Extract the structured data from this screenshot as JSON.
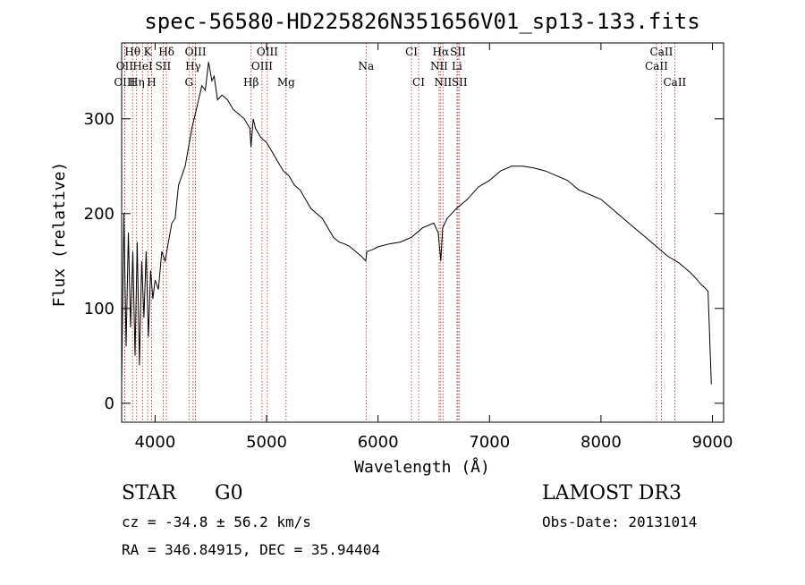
{
  "chart_data": {
    "type": "line",
    "title": "spec-56580-HD225826N351656V01_sp13-133.fits",
    "xlabel": "Wavelength (Å)",
    "ylabel": "Flux (relative)",
    "xlim": [
      3700,
      9100
    ],
    "ylim": [
      -20,
      380
    ],
    "x_ticks": [
      4000,
      5000,
      6000,
      7000,
      8000,
      9000
    ],
    "y_ticks": [
      0,
      100,
      200,
      300
    ],
    "x_tick_labels": [
      "4000",
      "5000",
      "6000",
      "7000",
      "8000",
      "9000"
    ],
    "y_tick_labels": [
      "0",
      "100",
      "200",
      "300"
    ],
    "grid": false,
    "legend": "none",
    "series": [
      {
        "color": "#000000",
        "x": [
          3700,
          3720,
          3740,
          3760,
          3780,
          3800,
          3820,
          3840,
          3860,
          3880,
          3900,
          3920,
          3940,
          3960,
          3980,
          4000,
          4030,
          4060,
          4090,
          4120,
          4150,
          4180,
          4210,
          4240,
          4270,
          4300,
          4330,
          4360,
          4390,
          4420,
          4450,
          4480,
          4510,
          4530,
          4560,
          4600,
          4650,
          4700,
          4750,
          4800,
          4850,
          4860,
          4880,
          4900,
          4950,
          5000,
          5050,
          5100,
          5150,
          5200,
          5250,
          5300,
          5350,
          5400,
          5450,
          5500,
          5550,
          5600,
          5650,
          5700,
          5750,
          5800,
          5850,
          5890,
          5900,
          5950,
          6000,
          6100,
          6200,
          6300,
          6400,
          6500,
          6540,
          6563,
          6580,
          6620,
          6700,
          6800,
          6900,
          7000,
          7100,
          7200,
          7300,
          7400,
          7500,
          7600,
          7700,
          7800,
          7900,
          8000,
          8100,
          8200,
          8300,
          8400,
          8500,
          8600,
          8700,
          8800,
          8850,
          8900,
          8930,
          8960,
          8990
        ],
        "y": [
          20,
          200,
          60,
          180,
          80,
          160,
          50,
          170,
          40,
          150,
          90,
          160,
          70,
          140,
          110,
          130,
          120,
          160,
          150,
          170,
          190,
          195,
          230,
          240,
          250,
          270,
          290,
          305,
          320,
          335,
          330,
          360,
          340,
          345,
          320,
          325,
          320,
          310,
          305,
          300,
          290,
          270,
          300,
          290,
          280,
          275,
          265,
          255,
          245,
          240,
          230,
          225,
          215,
          205,
          200,
          195,
          185,
          175,
          170,
          168,
          165,
          160,
          155,
          150,
          160,
          162,
          165,
          168,
          170,
          175,
          185,
          190,
          180,
          150,
          185,
          195,
          205,
          215,
          228,
          235,
          245,
          250,
          250,
          248,
          245,
          240,
          235,
          225,
          220,
          215,
          205,
          195,
          185,
          175,
          165,
          155,
          148,
          138,
          132,
          125,
          122,
          118,
          20
        ]
      }
    ],
    "spectral_lines": [
      {
        "label": "Hθ",
        "wavelength": 3798,
        "tier": 1
      },
      {
        "label": "K",
        "wavelength": 3934,
        "tier": 1
      },
      {
        "label": "Hδ",
        "wavelength": 4102,
        "tier": 1
      },
      {
        "label": "OII",
        "wavelength": 3727,
        "tier": 2
      },
      {
        "label": "HeI",
        "wavelength": 3889,
        "tier": 2
      },
      {
        "label": "SII",
        "wavelength": 4072,
        "tier": 2
      },
      {
        "label": "OIII",
        "wavelength": 3727,
        "tier": 3
      },
      {
        "label": "Hη",
        "wavelength": 3835,
        "tier": 3
      },
      {
        "label": "H",
        "wavelength": 3969,
        "tier": 3
      },
      {
        "label": "OIII",
        "wavelength": 4363,
        "tier": 1
      },
      {
        "label": "Hγ",
        "wavelength": 4341,
        "tier": 2
      },
      {
        "label": "G",
        "wavelength": 4304,
        "tier": 3
      },
      {
        "label": "OIII",
        "wavelength": 5007,
        "tier": 1
      },
      {
        "label": "OIII",
        "wavelength": 4959,
        "tier": 2
      },
      {
        "label": "Hβ",
        "wavelength": 4861,
        "tier": 3
      },
      {
        "label": "Mg",
        "wavelength": 5175,
        "tier": 3
      },
      {
        "label": "Na",
        "wavelength": 5893,
        "tier": 2
      },
      {
        "label": "CI",
        "wavelength": 6300,
        "tier": 1
      },
      {
        "label": "CI",
        "wavelength": 6364,
        "tier": 3
      },
      {
        "label": "Hα",
        "wavelength": 6563,
        "tier": 1
      },
      {
        "label": "SII",
        "wavelength": 6717,
        "tier": 1
      },
      {
        "label": "NII",
        "wavelength": 6548,
        "tier": 2
      },
      {
        "label": "Li",
        "wavelength": 6708,
        "tier": 2
      },
      {
        "label": "NII",
        "wavelength": 6583,
        "tier": 3
      },
      {
        "label": "SII",
        "wavelength": 6731,
        "tier": 3
      },
      {
        "label": "CaII",
        "wavelength": 8542,
        "tier": 1
      },
      {
        "label": "CaII",
        "wavelength": 8498,
        "tier": 2
      },
      {
        "label": "CaII",
        "wavelength": 8662,
        "tier": 3
      }
    ]
  },
  "info": {
    "object_class": "STAR",
    "subclass": "G0",
    "survey": "LAMOST DR3",
    "redshift_line": "cz = -34.8 ± 56.2 km/s",
    "obs_date": "Obs-Date: 20131014",
    "coords": "RA = 346.84915, DEC =  35.94404"
  }
}
